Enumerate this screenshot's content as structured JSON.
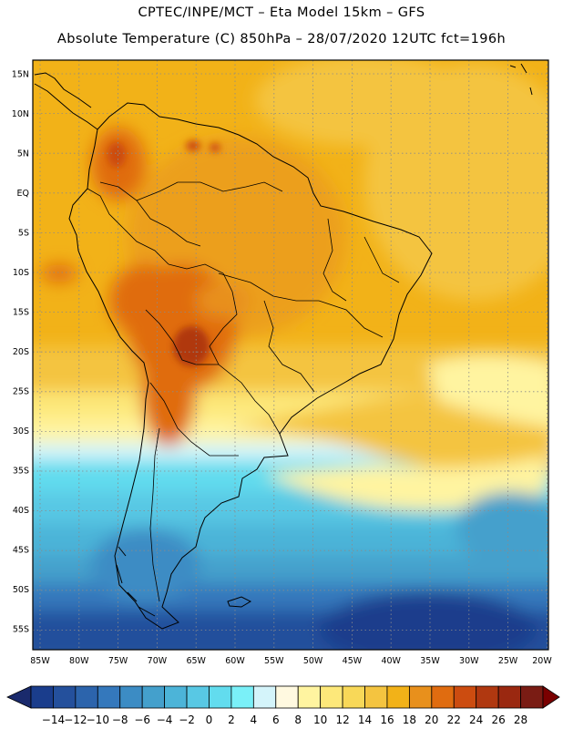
{
  "header": {
    "line1": "CPTEC/INPE/MCT –  Eta Model 15km – GFS",
    "line2": "Absolute Temperature (C) 850hPa – 28/07/2020 12UTC fct=196h"
  },
  "map": {
    "lat_labels": [
      "15N",
      "10N",
      "5N",
      "EQ",
      "5S",
      "10S",
      "15S",
      "20S",
      "25S",
      "30S",
      "35S",
      "40S",
      "45S",
      "50S",
      "55S"
    ],
    "lon_labels": [
      "85W",
      "80W",
      "75W",
      "70W",
      "65W",
      "60W",
      "55W",
      "50W",
      "45W",
      "40W",
      "35W",
      "30W",
      "25W",
      "20W"
    ]
  },
  "colorbar": {
    "colors": [
      "#1a3d8c",
      "#24509c",
      "#2c64ac",
      "#3478bc",
      "#3c8cc4",
      "#44a0cc",
      "#4cb4d8",
      "#58c8e4",
      "#62dcee",
      "#7af0f8",
      "#d4f4fa",
      "#fff9e0",
      "#fff4a0",
      "#fde87a",
      "#f8d858",
      "#f4c440",
      "#f2b218",
      "#e8901c",
      "#e06c10",
      "#cc4c10",
      "#b03810",
      "#9a2810",
      "#7a1c14"
    ],
    "tick_labels": [
      "-14",
      "-12",
      "-10",
      "-8",
      "-6",
      "-4",
      "-2",
      "0",
      "2",
      "4",
      "6",
      "8",
      "10",
      "12",
      "14",
      "16",
      "18",
      "20",
      "22",
      "24",
      "26",
      "28"
    ],
    "under_color": "#1a2a6c",
    "over_color": "#7a0000"
  }
}
